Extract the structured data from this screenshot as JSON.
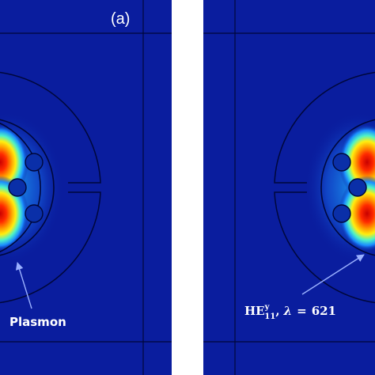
{
  "panels": [
    {
      "id": "a",
      "label": "(a)",
      "annotation": "Plasmon"
    },
    {
      "id": "b",
      "label": "",
      "annotation": {
        "main": "HE",
        "superscript": "y",
        "subscript": "11",
        "separator": ",",
        "symbol": "λ",
        "equals": "=",
        "value": "621"
      }
    }
  ],
  "colors": {
    "background": "#0a1d9e",
    "divider": "#ffffff",
    "outline": "#00073a",
    "field_high": "#e60000",
    "field_mid": "#ffe000",
    "field_low": "#00c0ff",
    "arrow": "#9ab0ff",
    "text": "#ffffff"
  }
}
